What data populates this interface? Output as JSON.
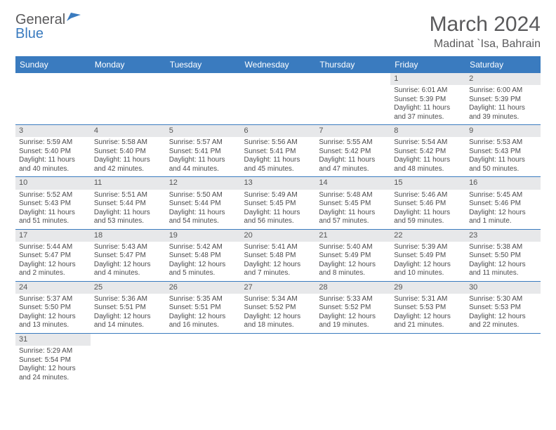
{
  "logo": {
    "brand1": "General",
    "brand2": "Blue"
  },
  "title": "March 2024",
  "subtitle": "Madinat `Isa, Bahrain",
  "weekdays": [
    "Sunday",
    "Monday",
    "Tuesday",
    "Wednesday",
    "Thursday",
    "Friday",
    "Saturday"
  ],
  "colors": {
    "header_bg": "#3a7bbf",
    "header_fg": "#ffffff",
    "daynum_bg": "#e7e8ea",
    "rule": "#3a7bbf",
    "text": "#4b4b4d",
    "title": "#5a5a5c"
  },
  "cells": [
    [
      {
        "empty": true
      },
      {
        "empty": true
      },
      {
        "empty": true
      },
      {
        "empty": true
      },
      {
        "empty": true
      },
      {
        "n": "1",
        "sr": "Sunrise: 6:01 AM",
        "ss": "Sunset: 5:39 PM",
        "dl": "Daylight: 11 hours and 37 minutes."
      },
      {
        "n": "2",
        "sr": "Sunrise: 6:00 AM",
        "ss": "Sunset: 5:39 PM",
        "dl": "Daylight: 11 hours and 39 minutes."
      }
    ],
    [
      {
        "n": "3",
        "sr": "Sunrise: 5:59 AM",
        "ss": "Sunset: 5:40 PM",
        "dl": "Daylight: 11 hours and 40 minutes."
      },
      {
        "n": "4",
        "sr": "Sunrise: 5:58 AM",
        "ss": "Sunset: 5:40 PM",
        "dl": "Daylight: 11 hours and 42 minutes."
      },
      {
        "n": "5",
        "sr": "Sunrise: 5:57 AM",
        "ss": "Sunset: 5:41 PM",
        "dl": "Daylight: 11 hours and 44 minutes."
      },
      {
        "n": "6",
        "sr": "Sunrise: 5:56 AM",
        "ss": "Sunset: 5:41 PM",
        "dl": "Daylight: 11 hours and 45 minutes."
      },
      {
        "n": "7",
        "sr": "Sunrise: 5:55 AM",
        "ss": "Sunset: 5:42 PM",
        "dl": "Daylight: 11 hours and 47 minutes."
      },
      {
        "n": "8",
        "sr": "Sunrise: 5:54 AM",
        "ss": "Sunset: 5:42 PM",
        "dl": "Daylight: 11 hours and 48 minutes."
      },
      {
        "n": "9",
        "sr": "Sunrise: 5:53 AM",
        "ss": "Sunset: 5:43 PM",
        "dl": "Daylight: 11 hours and 50 minutes."
      }
    ],
    [
      {
        "n": "10",
        "sr": "Sunrise: 5:52 AM",
        "ss": "Sunset: 5:43 PM",
        "dl": "Daylight: 11 hours and 51 minutes."
      },
      {
        "n": "11",
        "sr": "Sunrise: 5:51 AM",
        "ss": "Sunset: 5:44 PM",
        "dl": "Daylight: 11 hours and 53 minutes."
      },
      {
        "n": "12",
        "sr": "Sunrise: 5:50 AM",
        "ss": "Sunset: 5:44 PM",
        "dl": "Daylight: 11 hours and 54 minutes."
      },
      {
        "n": "13",
        "sr": "Sunrise: 5:49 AM",
        "ss": "Sunset: 5:45 PM",
        "dl": "Daylight: 11 hours and 56 minutes."
      },
      {
        "n": "14",
        "sr": "Sunrise: 5:48 AM",
        "ss": "Sunset: 5:45 PM",
        "dl": "Daylight: 11 hours and 57 minutes."
      },
      {
        "n": "15",
        "sr": "Sunrise: 5:46 AM",
        "ss": "Sunset: 5:46 PM",
        "dl": "Daylight: 11 hours and 59 minutes."
      },
      {
        "n": "16",
        "sr": "Sunrise: 5:45 AM",
        "ss": "Sunset: 5:46 PM",
        "dl": "Daylight: 12 hours and 1 minute."
      }
    ],
    [
      {
        "n": "17",
        "sr": "Sunrise: 5:44 AM",
        "ss": "Sunset: 5:47 PM",
        "dl": "Daylight: 12 hours and 2 minutes."
      },
      {
        "n": "18",
        "sr": "Sunrise: 5:43 AM",
        "ss": "Sunset: 5:47 PM",
        "dl": "Daylight: 12 hours and 4 minutes."
      },
      {
        "n": "19",
        "sr": "Sunrise: 5:42 AM",
        "ss": "Sunset: 5:48 PM",
        "dl": "Daylight: 12 hours and 5 minutes."
      },
      {
        "n": "20",
        "sr": "Sunrise: 5:41 AM",
        "ss": "Sunset: 5:48 PM",
        "dl": "Daylight: 12 hours and 7 minutes."
      },
      {
        "n": "21",
        "sr": "Sunrise: 5:40 AM",
        "ss": "Sunset: 5:49 PM",
        "dl": "Daylight: 12 hours and 8 minutes."
      },
      {
        "n": "22",
        "sr": "Sunrise: 5:39 AM",
        "ss": "Sunset: 5:49 PM",
        "dl": "Daylight: 12 hours and 10 minutes."
      },
      {
        "n": "23",
        "sr": "Sunrise: 5:38 AM",
        "ss": "Sunset: 5:50 PM",
        "dl": "Daylight: 12 hours and 11 minutes."
      }
    ],
    [
      {
        "n": "24",
        "sr": "Sunrise: 5:37 AM",
        "ss": "Sunset: 5:50 PM",
        "dl": "Daylight: 12 hours and 13 minutes."
      },
      {
        "n": "25",
        "sr": "Sunrise: 5:36 AM",
        "ss": "Sunset: 5:51 PM",
        "dl": "Daylight: 12 hours and 14 minutes."
      },
      {
        "n": "26",
        "sr": "Sunrise: 5:35 AM",
        "ss": "Sunset: 5:51 PM",
        "dl": "Daylight: 12 hours and 16 minutes."
      },
      {
        "n": "27",
        "sr": "Sunrise: 5:34 AM",
        "ss": "Sunset: 5:52 PM",
        "dl": "Daylight: 12 hours and 18 minutes."
      },
      {
        "n": "28",
        "sr": "Sunrise: 5:33 AM",
        "ss": "Sunset: 5:52 PM",
        "dl": "Daylight: 12 hours and 19 minutes."
      },
      {
        "n": "29",
        "sr": "Sunrise: 5:31 AM",
        "ss": "Sunset: 5:53 PM",
        "dl": "Daylight: 12 hours and 21 minutes."
      },
      {
        "n": "30",
        "sr": "Sunrise: 5:30 AM",
        "ss": "Sunset: 5:53 PM",
        "dl": "Daylight: 12 hours and 22 minutes."
      }
    ],
    [
      {
        "n": "31",
        "sr": "Sunrise: 5:29 AM",
        "ss": "Sunset: 5:54 PM",
        "dl": "Daylight: 12 hours and 24 minutes."
      },
      {
        "empty": true
      },
      {
        "empty": true
      },
      {
        "empty": true
      },
      {
        "empty": true
      },
      {
        "empty": true
      },
      {
        "empty": true
      }
    ]
  ]
}
